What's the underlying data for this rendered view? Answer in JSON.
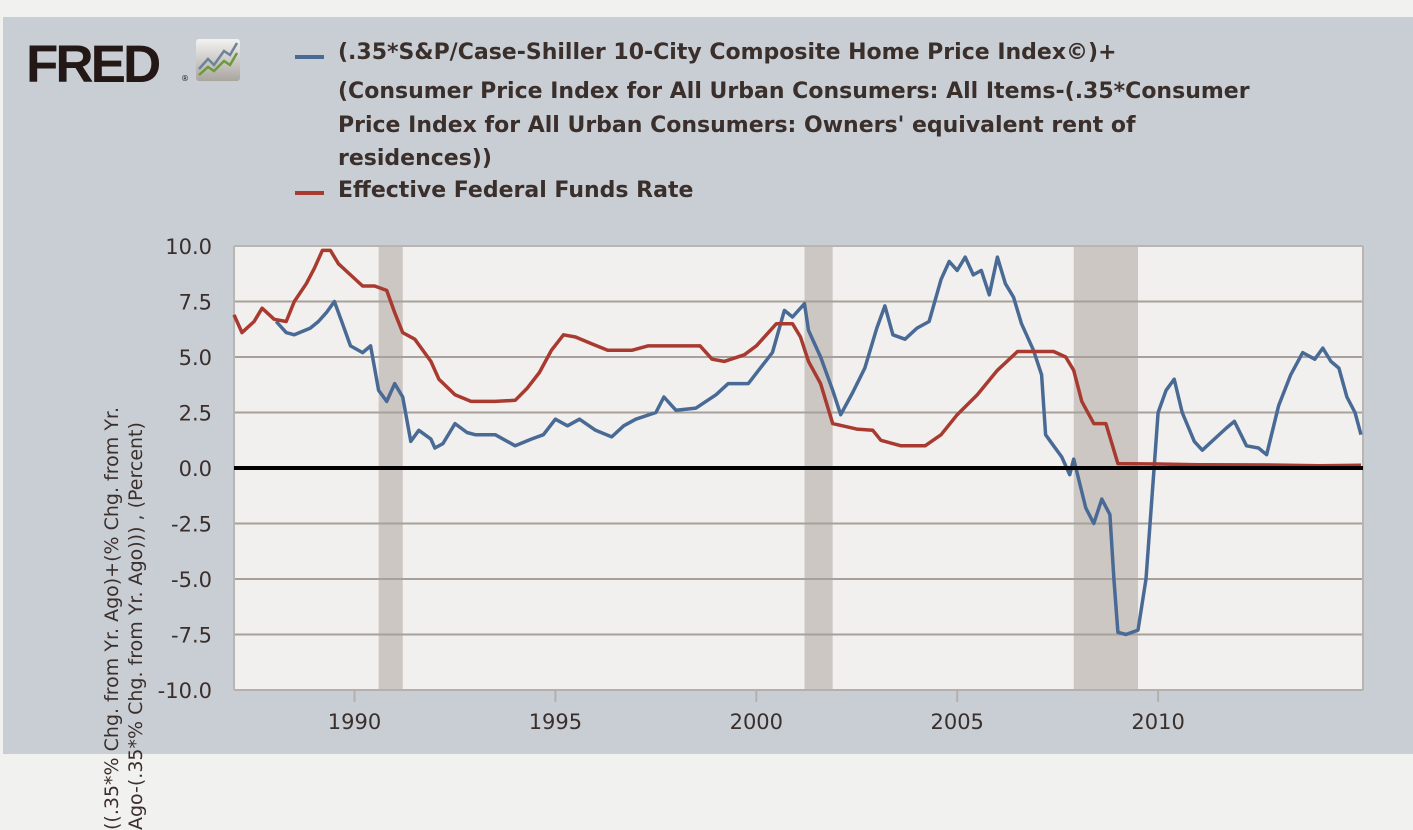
{
  "logo": {
    "text": "FRED",
    "icon": "line-chart-icon"
  },
  "chart_data": {
    "type": "line",
    "title": "",
    "xlabel": "",
    "ylabel_lines": [
      "((.35*% Chg. from Yr. Ago)+(% Chg. from Yr.",
      "Ago-(.35*% Chg. from Yr. Ago))) , (Percent)"
    ],
    "xlim": [
      1987.0,
      2015.1
    ],
    "ylim": [
      -10.0,
      10.0
    ],
    "yticks": [
      "10.0",
      "7.5",
      "5.0",
      "2.5",
      "0.0",
      "-2.5",
      "-5.0",
      "-7.5",
      "-10.0"
    ],
    "xticks": [
      "1990",
      "1995",
      "2000",
      "2005",
      "2010"
    ],
    "grid": true,
    "legend_placement": "top",
    "recessions": [
      [
        1990.6,
        1991.2
      ],
      [
        2001.2,
        2001.9
      ],
      [
        2007.9,
        2009.5
      ]
    ],
    "series": [
      {
        "name": "(.35*S&P/Case-Shiller 10-City Composite Home Price Index©)+ (Consumer Price Index for All Urban Consumers: All Items-(.35*Consumer Price Index for All Urban Consumers: Owners' equivalent rent of residences))",
        "legend_lines": [
          "(.35*S&P/Case-Shiller 10-City Composite Home Price Index©)+",
          "(Consumer Price Index for All Urban Consumers: All Items-(.35*Consumer",
          "Price Index for All Urban Consumers: Owners' equivalent rent of",
          "residences))"
        ],
        "color": "#4a6a96",
        "x": [
          1988.05,
          1988.3,
          1988.5,
          1988.9,
          1989.1,
          1989.3,
          1989.5,
          1989.7,
          1989.9,
          1990.2,
          1990.4,
          1990.6,
          1990.8,
          1991.0,
          1991.2,
          1991.4,
          1991.6,
          1991.9,
          1992.0,
          1992.2,
          1992.5,
          1992.8,
          1993.0,
          1993.5,
          1994.0,
          1994.4,
          1994.7,
          1995.0,
          1995.3,
          1995.6,
          1996.0,
          1996.4,
          1996.7,
          1997.0,
          1997.5,
          1997.7,
          1998.0,
          1998.5,
          1999.0,
          1999.3,
          1999.8,
          2000.1,
          2000.4,
          2000.7,
          2000.9,
          2001.2,
          2001.3,
          2001.6,
          2001.9,
          2002.1,
          2002.4,
          2002.7,
          2003.0,
          2003.2,
          2003.4,
          2003.7,
          2004.0,
          2004.3,
          2004.6,
          2004.8,
          2005.0,
          2005.2,
          2005.4,
          2005.6,
          2005.8,
          2006.0,
          2006.2,
          2006.4,
          2006.6,
          2006.9,
          2007.1,
          2007.2,
          2007.4,
          2007.6,
          2007.8,
          2007.9,
          2008.2,
          2008.4,
          2008.6,
          2008.8,
          2008.9,
          2009.0,
          2009.2,
          2009.5,
          2009.7,
          2009.9,
          2010.0,
          2010.2,
          2010.4,
          2010.6,
          2010.9,
          2011.1,
          2011.4,
          2011.7,
          2011.9,
          2012.2,
          2012.5,
          2012.7,
          2013.0,
          2013.3,
          2013.6,
          2013.9,
          2014.1,
          2014.3,
          2014.5,
          2014.7,
          2014.9,
          2015.05
        ],
        "values": [
          6.6,
          6.1,
          6.0,
          6.3,
          6.6,
          7.0,
          7.5,
          6.5,
          5.5,
          5.2,
          5.5,
          3.5,
          3.0,
          3.8,
          3.2,
          1.2,
          1.7,
          1.3,
          0.9,
          1.1,
          2.0,
          1.6,
          1.5,
          1.5,
          1.0,
          1.3,
          1.5,
          2.2,
          1.9,
          2.2,
          1.7,
          1.4,
          1.9,
          2.2,
          2.5,
          3.2,
          2.6,
          2.7,
          3.3,
          3.8,
          3.8,
          4.5,
          5.2,
          7.1,
          6.8,
          7.4,
          6.2,
          5.0,
          3.5,
          2.4,
          3.4,
          4.5,
          6.3,
          7.3,
          6.0,
          5.8,
          6.3,
          6.6,
          8.5,
          9.3,
          8.9,
          9.5,
          8.7,
          8.9,
          7.8,
          9.5,
          8.3,
          7.7,
          6.5,
          5.3,
          4.2,
          1.5,
          1.0,
          0.5,
          -0.3,
          0.4,
          -1.8,
          -2.5,
          -1.4,
          -2.1,
          -5.0,
          -7.4,
          -7.5,
          -7.3,
          -5.0,
          0.0,
          2.5,
          3.5,
          4.0,
          2.5,
          1.2,
          0.8,
          1.3,
          1.8,
          2.1,
          1.0,
          0.9,
          0.6,
          2.8,
          4.2,
          5.2,
          4.9,
          5.4,
          4.8,
          4.5,
          3.2,
          2.5,
          1.5
        ]
      },
      {
        "name": "Effective Federal Funds Rate",
        "legend_lines": [
          "Effective Federal Funds Rate"
        ],
        "color": "#a83a30",
        "x": [
          1987.0,
          1987.2,
          1987.5,
          1987.7,
          1988.0,
          1988.3,
          1988.5,
          1988.8,
          1989.0,
          1989.2,
          1989.4,
          1989.6,
          1989.9,
          1990.2,
          1990.5,
          1990.8,
          1991.0,
          1991.2,
          1991.5,
          1991.9,
          1992.1,
          1992.5,
          1992.9,
          1993.5,
          1994.0,
          1994.3,
          1994.6,
          1994.9,
          1995.2,
          1995.5,
          1995.9,
          1996.3,
          1996.9,
          1997.3,
          1998.0,
          1998.6,
          1998.9,
          1999.2,
          1999.7,
          2000.0,
          2000.5,
          2000.9,
          2001.1,
          2001.3,
          2001.6,
          2001.9,
          2002.5,
          2002.9,
          2003.1,
          2003.6,
          2004.2,
          2004.6,
          2005.0,
          2005.5,
          2006.0,
          2006.5,
          2007.4,
          2007.7,
          2007.9,
          2008.1,
          2008.4,
          2008.7,
          2008.9,
          2009.0,
          2010.0,
          2011.0,
          2012.0,
          2013.0,
          2014.0,
          2015.05
        ],
        "values": [
          6.9,
          6.1,
          6.6,
          7.2,
          6.7,
          6.6,
          7.5,
          8.3,
          9.0,
          9.8,
          9.8,
          9.2,
          8.7,
          8.2,
          8.2,
          8.0,
          7.0,
          6.1,
          5.8,
          4.8,
          4.0,
          3.3,
          3.0,
          3.0,
          3.05,
          3.6,
          4.3,
          5.3,
          6.0,
          5.9,
          5.6,
          5.3,
          5.3,
          5.5,
          5.5,
          5.5,
          4.9,
          4.8,
          5.1,
          5.5,
          6.5,
          6.5,
          5.9,
          4.8,
          3.8,
          2.0,
          1.75,
          1.7,
          1.25,
          1.0,
          1.0,
          1.5,
          2.4,
          3.3,
          4.4,
          5.25,
          5.25,
          5.0,
          4.4,
          3.0,
          2.0,
          2.0,
          0.8,
          0.2,
          0.18,
          0.15,
          0.14,
          0.13,
          0.1,
          0.12
        ]
      }
    ]
  }
}
